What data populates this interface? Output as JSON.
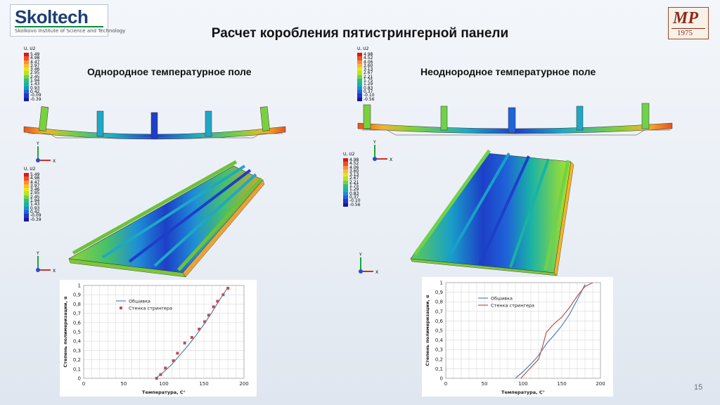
{
  "logos": {
    "skoltech_brand": "Skoltech",
    "skoltech_sub": "Skolkovo Institute of Science and Technology",
    "mp_mark": "МР",
    "mp_year": "1975"
  },
  "title": "Расчет коробления пятистрингерной панели",
  "left": {
    "subtitle": "Однородное температурное поле",
    "legend_title": "U, U2",
    "legend_values": [
      "5.49",
      "4.98",
      "4.47",
      "3.97",
      "3.46",
      "2.95",
      "2.45",
      "1.94",
      "1.43",
      "0.93",
      "0.42",
      "-0.09",
      "-0.39"
    ],
    "legend2_title": "U, U2",
    "legend2_values": [
      "5.49",
      "4.98",
      "4.47",
      "3.97",
      "3.46",
      "2.95",
      "2.45",
      "1.94",
      "1.43",
      "0.93",
      "0.42",
      "-0.09",
      "-0.39"
    ]
  },
  "right": {
    "subtitle": "Неоднородное температурное поле",
    "legend_title": "U, U2",
    "legend_values": [
      "4.98",
      "4.52",
      "4.06",
      "3.60",
      "3.13",
      "2.67",
      "2.21",
      "1.75",
      "1.29",
      "0.83",
      "0.37",
      "-0.10",
      "-0.56"
    ],
    "legend2_title": "U, U2",
    "legend2_values": [
      "4.98",
      "4.52",
      "4.06",
      "3.60",
      "3.13",
      "2.67",
      "2.21",
      "1.75",
      "1.29",
      "0.83",
      "0.37",
      "-0.10",
      "-0.56"
    ]
  },
  "axis_triad": {
    "x": "X",
    "y": "Y"
  },
  "legend_colors": [
    "#d7191c",
    "#f0501e",
    "#fd8d3c",
    "#fdbb2d",
    "#e6e61a",
    "#b5e51d",
    "#6fd24a",
    "#2fbf71",
    "#19b2a6",
    "#1a8fd6",
    "#1f63d8",
    "#2236c8",
    "#1a1a9a"
  ],
  "chart_data": [
    {
      "type": "line",
      "title": "",
      "xlabel": "Температура, С°",
      "ylabel": "Степень полимеризации, α",
      "xlim": [
        0,
        200
      ],
      "ylim": [
        0,
        1
      ],
      "xticks": [
        "0",
        "50",
        "100",
        "150",
        "200"
      ],
      "yticks": [
        "0",
        "0,1",
        "0,2",
        "0,3",
        "0,4",
        "0,5",
        "0,6",
        "0,7",
        "0,8",
        "0,9",
        "1"
      ],
      "grid": true,
      "legend_position": "top-left",
      "series": [
        {
          "name": "Обшивка",
          "color": "#4f81bd",
          "style": "line",
          "x": [
            90,
            100,
            110,
            120,
            130,
            140,
            150,
            160,
            170,
            180
          ],
          "y": [
            0,
            0.07,
            0.15,
            0.25,
            0.35,
            0.46,
            0.58,
            0.71,
            0.85,
            0.98
          ]
        },
        {
          "name": "Стенка стрингера",
          "color": "#c0504d",
          "style": "markers",
          "x": [
            91,
            96,
            102,
            112,
            117,
            126,
            135,
            144,
            151,
            156,
            162,
            167,
            174,
            180
          ],
          "y": [
            0,
            0.04,
            0.11,
            0.19,
            0.27,
            0.38,
            0.44,
            0.53,
            0.61,
            0.68,
            0.77,
            0.83,
            0.9,
            0.97
          ]
        }
      ]
    },
    {
      "type": "line",
      "title": "",
      "xlabel": "Температура, С°",
      "ylabel": "Степень полимеризации, α",
      "xlim": [
        0,
        200
      ],
      "ylim": [
        0,
        1
      ],
      "xticks": [
        "0",
        "50",
        "100",
        "150",
        "200"
      ],
      "yticks": [
        "0",
        "0,1",
        "0,2",
        "0,3",
        "0,4",
        "0,5",
        "0,6",
        "0,7",
        "0,8",
        "0,9",
        "1"
      ],
      "grid": true,
      "legend_position": "top-left",
      "series": [
        {
          "name": "Обшивка",
          "color": "#4f81bd",
          "style": "line",
          "x": [
            90,
            100,
            110,
            118,
            125,
            132,
            140,
            150,
            160,
            170,
            180
          ],
          "y": [
            0,
            0.07,
            0.15,
            0.22,
            0.3,
            0.38,
            0.45,
            0.55,
            0.67,
            0.82,
            0.98
          ]
        },
        {
          "name": "Стенка стрингера",
          "color": "#c0504d",
          "style": "line",
          "x": [
            97,
            105,
            112,
            120,
            125,
            130,
            140,
            150,
            160,
            170,
            180,
            190
          ],
          "y": [
            0,
            0.07,
            0.13,
            0.2,
            0.33,
            0.48,
            0.57,
            0.64,
            0.74,
            0.86,
            0.96,
            1.0
          ]
        }
      ]
    }
  ],
  "page_number": "15"
}
